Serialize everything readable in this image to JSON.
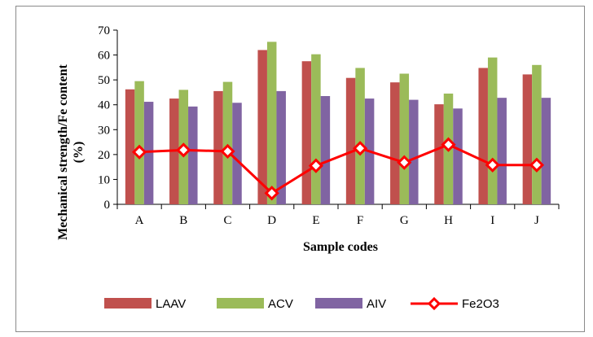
{
  "chart_data": {
    "type": "bar",
    "combo": "bar-line",
    "categories": [
      "A",
      "B",
      "C",
      "D",
      "E",
      "F",
      "G",
      "H",
      "I",
      "J"
    ],
    "series": [
      {
        "name": "LAAV",
        "type": "bar",
        "color": "#c0504d",
        "values": [
          46.2,
          42.5,
          45.5,
          62.0,
          57.5,
          50.8,
          49.0,
          40.2,
          54.8,
          52.2
        ]
      },
      {
        "name": "ACV",
        "type": "bar",
        "color": "#9bbb59",
        "values": [
          49.5,
          46.0,
          49.2,
          65.3,
          60.3,
          54.8,
          52.5,
          44.5,
          59.0,
          56.0
        ]
      },
      {
        "name": "AIV",
        "type": "bar",
        "color": "#8064a2",
        "values": [
          41.2,
          39.3,
          40.8,
          45.5,
          43.5,
          42.5,
          42.0,
          38.5,
          42.8,
          42.8
        ]
      },
      {
        "name": "Fe2O3",
        "type": "line",
        "color": "#ff0000",
        "marker_color": "#ff0000",
        "values": [
          21.0,
          21.8,
          21.3,
          4.5,
          15.5,
          22.5,
          16.8,
          24.0,
          15.8,
          15.8
        ]
      }
    ],
    "xlabel": "Sample codes",
    "ylabel": "Mechanical strength/Fe content (%)",
    "ylabel_lines": [
      "Mechanical strength/Fe content",
      "(%)"
    ],
    "ylim": [
      0,
      70
    ],
    "yticks": [
      "0",
      "10",
      "20",
      "30",
      "40",
      "50",
      "60",
      "70"
    ],
    "grid": false,
    "legend_position": "bottom"
  }
}
